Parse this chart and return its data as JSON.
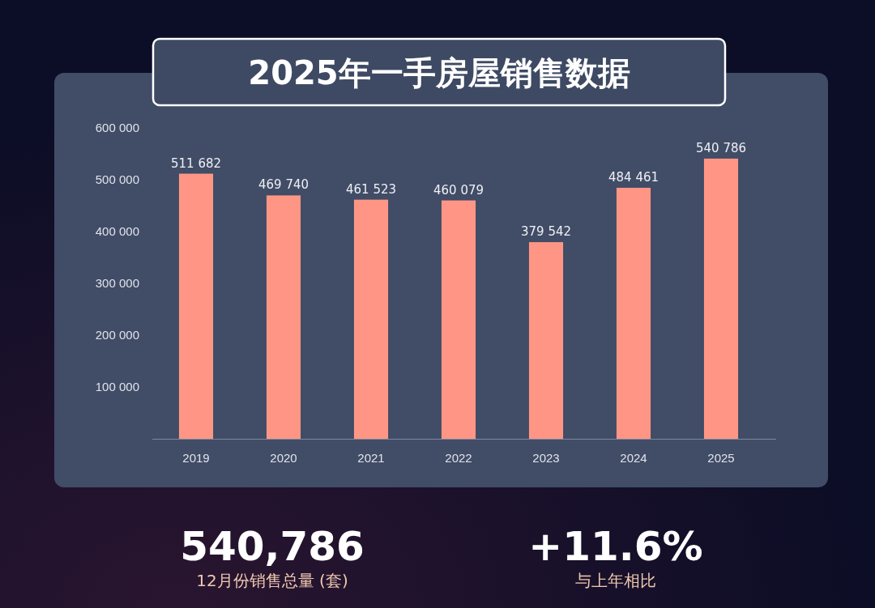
{
  "chart_data": {
    "type": "bar",
    "title": "2025年一手房屋销售数据",
    "categories": [
      "2019",
      "2020",
      "2021",
      "2022",
      "2023",
      "2024",
      "2025"
    ],
    "values": [
      511682,
      469740,
      461523,
      460079,
      379542,
      484461,
      540786
    ],
    "value_labels": [
      "511 682",
      "469 740",
      "461 523",
      "460 079",
      "379 542",
      "484 461",
      "540 786"
    ],
    "color": "#ff9685",
    "ylim": [
      0,
      600000
    ],
    "yticks": [
      {
        "value": 100000,
        "label": "100 000"
      },
      {
        "value": 200000,
        "label": "200 000"
      },
      {
        "value": 300000,
        "label": "300 000"
      },
      {
        "value": 400000,
        "label": "400 000"
      },
      {
        "value": 500000,
        "label": "500 000"
      },
      {
        "value": 600000,
        "label": "600 000"
      }
    ],
    "grid": false,
    "annotations": [
      "540,786",
      "12月份销售总量 (套)",
      "+11.6%",
      "与上年相比"
    ]
  }
}
